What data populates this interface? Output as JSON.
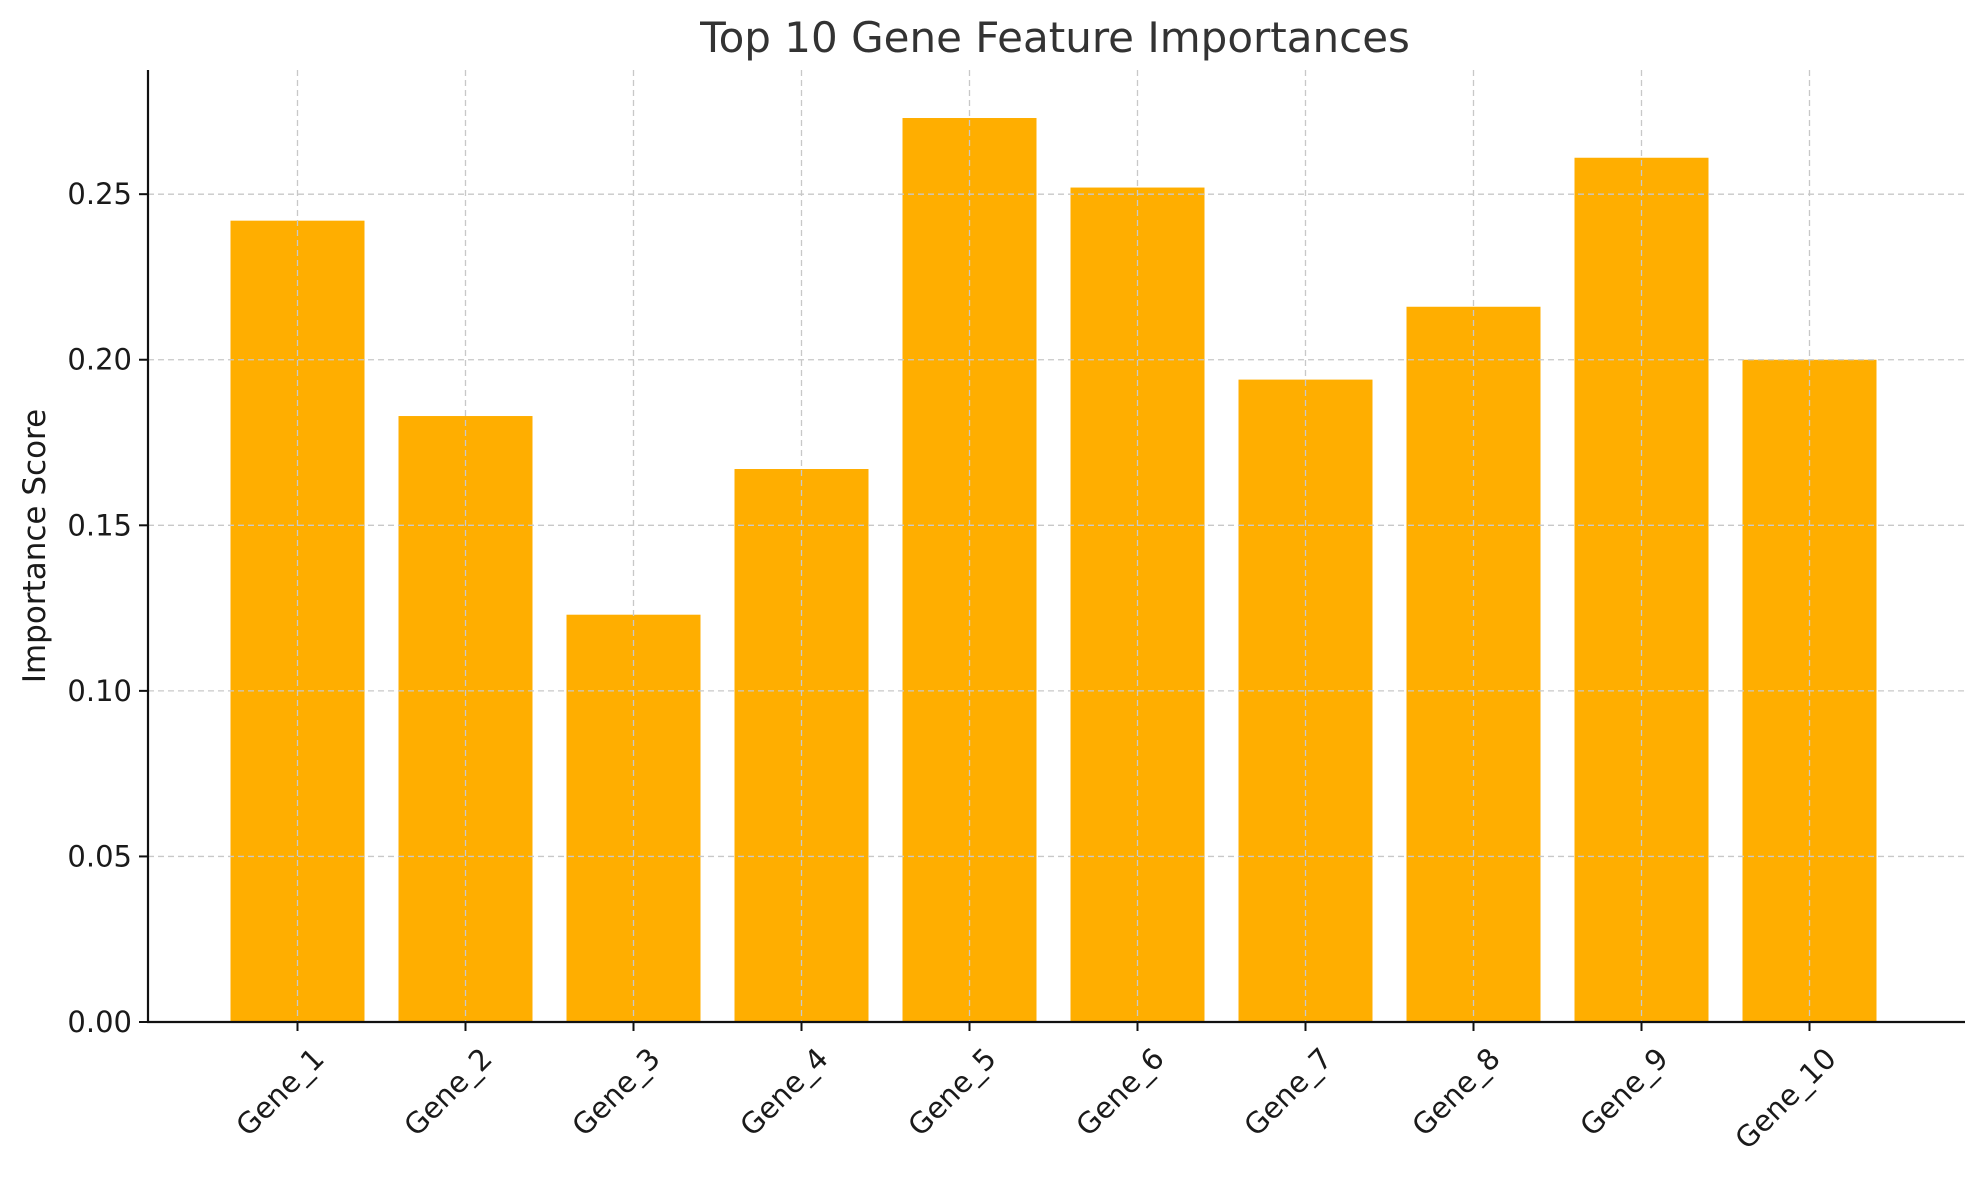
{
  "chart_data": {
    "type": "bar",
    "title": "Top 10 Gene Feature Importances",
    "xlabel": "",
    "ylabel": "Importance Score",
    "categories": [
      "Gene_1",
      "Gene_2",
      "Gene_3",
      "Gene_4",
      "Gene_5",
      "Gene_6",
      "Gene_7",
      "Gene_8",
      "Gene_9",
      "Gene_10"
    ],
    "values": [
      0.242,
      0.183,
      0.123,
      0.167,
      0.273,
      0.252,
      0.194,
      0.216,
      0.261,
      0.2
    ],
    "ylim": [
      0,
      0.2875
    ],
    "yticks": [
      "0.00",
      "0.05",
      "0.10",
      "0.15",
      "0.20",
      "0.25"
    ],
    "bar_color": "#FFAE00",
    "grid": true,
    "legend": "none"
  }
}
